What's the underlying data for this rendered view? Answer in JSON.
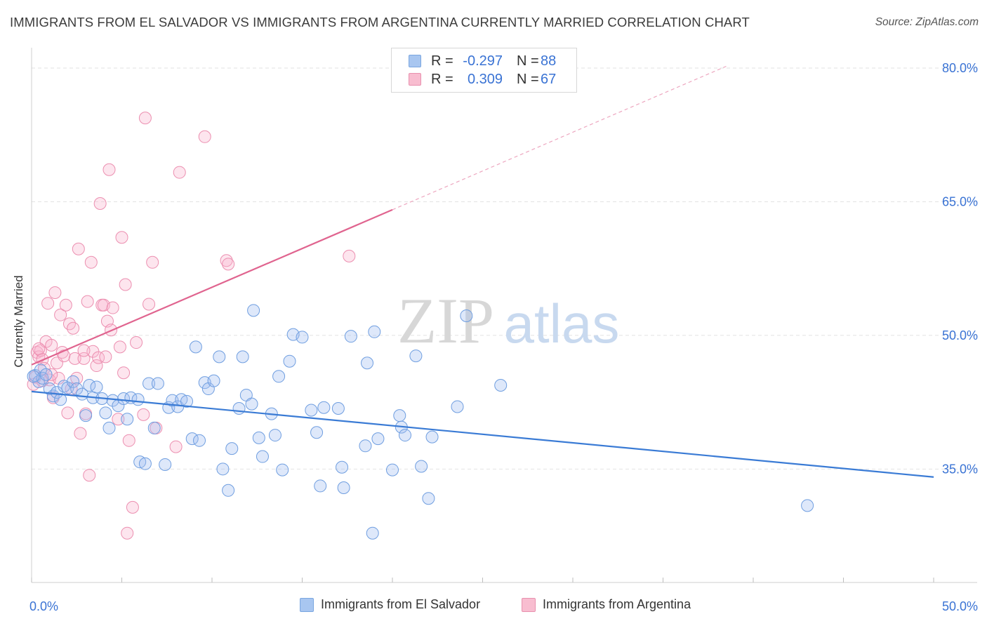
{
  "title": "IMMIGRANTS FROM EL SALVADOR VS IMMIGRANTS FROM ARGENTINA CURRENTLY MARRIED CORRELATION CHART",
  "source": "Source: ZipAtlas.com",
  "watermark": {
    "zip": "ZIP",
    "atlas": "atlas"
  },
  "legend": {
    "r_label": "R =",
    "n_label": "N =",
    "series": [
      {
        "r": "-0.297",
        "n": "88",
        "color": "#a8c6f0",
        "border": "#7aa6e0"
      },
      {
        "r": "0.309",
        "n": "67",
        "color": "#f8bdd0",
        "border": "#e890ae"
      }
    ]
  },
  "bottom_legend": [
    "Immigrants from El Salvador",
    "Immigrants from Argentina"
  ],
  "colors": {
    "blue_line": "#3a7bd5",
    "pink_line": "#e0648f",
    "blue_fill": "rgba(160,190,240,0.35)",
    "blue_stroke": "#6f9ee0",
    "pink_fill": "rgba(248,180,205,0.35)",
    "pink_stroke": "#ec8fb0",
    "tick_text": "#3a73d4",
    "grid": "#e2e2e2"
  },
  "chart_data": {
    "type": "scatter",
    "title": "IMMIGRANTS FROM EL SALVADOR VS IMMIGRANTS FROM ARGENTINA CURRENTLY MARRIED CORRELATION CHART",
    "xlabel": "",
    "ylabel": "Currently Married",
    "xlim": [
      0,
      50
    ],
    "ylim": [
      20,
      82
    ],
    "x_tick_labels": [
      "0.0%",
      "50.0%"
    ],
    "y_ticks": [
      35,
      50,
      65,
      80
    ],
    "y_tick_labels": [
      "35.0%",
      "50.0%",
      "65.0%",
      "80.0%"
    ],
    "grid": "horizontal dashed",
    "legend_position": "top-center",
    "series": [
      {
        "name": "Immigrants from El Salvador",
        "r": -0.297,
        "n": 88,
        "trend": {
          "x0": 0,
          "y0": 43.7,
          "x1": 50,
          "y1": 34.1
        },
        "points": [
          [
            0.2,
            45.5
          ],
          [
            0.4,
            44.8
          ],
          [
            0.5,
            46.1
          ],
          [
            0.6,
            45.2
          ],
          [
            0.8,
            45.6
          ],
          [
            1.0,
            44.0
          ],
          [
            1.2,
            43.2
          ],
          [
            1.4,
            43.6
          ],
          [
            1.6,
            42.8
          ],
          [
            1.8,
            44.3
          ],
          [
            2.0,
            44.1
          ],
          [
            2.3,
            44.8
          ],
          [
            2.5,
            44.0
          ],
          [
            2.8,
            43.4
          ],
          [
            3.0,
            41.0
          ],
          [
            3.2,
            44.4
          ],
          [
            3.4,
            43.0
          ],
          [
            3.6,
            44.2
          ],
          [
            3.9,
            42.9
          ],
          [
            4.1,
            41.3
          ],
          [
            4.3,
            39.6
          ],
          [
            4.5,
            42.7
          ],
          [
            4.8,
            42.1
          ],
          [
            5.1,
            42.9
          ],
          [
            5.3,
            40.6
          ],
          [
            5.5,
            43.0
          ],
          [
            5.9,
            42.8
          ],
          [
            6.0,
            35.8
          ],
          [
            6.3,
            35.6
          ],
          [
            6.5,
            44.6
          ],
          [
            6.8,
            39.6
          ],
          [
            7.0,
            44.6
          ],
          [
            7.4,
            35.5
          ],
          [
            7.6,
            41.9
          ],
          [
            7.8,
            42.7
          ],
          [
            8.1,
            42.0
          ],
          [
            8.3,
            42.8
          ],
          [
            8.6,
            42.6
          ],
          [
            8.9,
            38.4
          ],
          [
            9.1,
            48.7
          ],
          [
            9.3,
            38.2
          ],
          [
            9.6,
            44.7
          ],
          [
            9.8,
            44.0
          ],
          [
            10.1,
            44.9
          ],
          [
            10.4,
            47.6
          ],
          [
            10.6,
            35.0
          ],
          [
            10.9,
            32.6
          ],
          [
            11.1,
            37.3
          ],
          [
            11.5,
            41.8
          ],
          [
            11.7,
            47.6
          ],
          [
            11.9,
            43.3
          ],
          [
            12.2,
            42.3
          ],
          [
            12.3,
            52.8
          ],
          [
            12.6,
            38.5
          ],
          [
            12.8,
            36.4
          ],
          [
            13.3,
            41.2
          ],
          [
            13.5,
            38.8
          ],
          [
            13.7,
            45.4
          ],
          [
            13.9,
            34.9
          ],
          [
            14.3,
            47.1
          ],
          [
            14.5,
            50.1
          ],
          [
            15.0,
            49.8
          ],
          [
            15.5,
            41.6
          ],
          [
            15.8,
            39.1
          ],
          [
            16.0,
            33.1
          ],
          [
            16.2,
            41.9
          ],
          [
            17.0,
            41.8
          ],
          [
            17.2,
            35.2
          ],
          [
            17.3,
            32.9
          ],
          [
            17.7,
            49.9
          ],
          [
            18.5,
            37.6
          ],
          [
            18.6,
            46.9
          ],
          [
            18.9,
            27.8
          ],
          [
            19.0,
            50.4
          ],
          [
            19.2,
            38.4
          ],
          [
            20.0,
            34.9
          ],
          [
            20.4,
            41.0
          ],
          [
            20.5,
            39.7
          ],
          [
            20.7,
            38.8
          ],
          [
            21.3,
            47.7
          ],
          [
            21.6,
            35.3
          ],
          [
            22.0,
            31.7
          ],
          [
            22.2,
            38.6
          ],
          [
            23.6,
            42.0
          ],
          [
            24.1,
            52.2
          ],
          [
            26.0,
            44.4
          ],
          [
            43.0,
            30.9
          ],
          [
            0.1,
            45.4
          ]
        ]
      },
      {
        "name": "Immigrants from Argentina",
        "r": 0.309,
        "n": 67,
        "trend": {
          "x0": 0,
          "y0": 46.7,
          "x1": 20,
          "y1": 64.1,
          "x_dash_end": 38.5,
          "y_dash_end": 80.2
        },
        "points": [
          [
            0.1,
            44.5
          ],
          [
            0.2,
            45.3
          ],
          [
            0.3,
            48.1
          ],
          [
            0.4,
            47.6
          ],
          [
            0.5,
            48.3
          ],
          [
            0.6,
            47.3
          ],
          [
            0.7,
            46.3
          ],
          [
            0.8,
            49.3
          ],
          [
            0.9,
            53.6
          ],
          [
            1.0,
            45.0
          ],
          [
            1.1,
            48.9
          ],
          [
            1.2,
            43.0
          ],
          [
            1.3,
            54.8
          ],
          [
            1.4,
            46.9
          ],
          [
            1.5,
            45.2
          ],
          [
            1.6,
            52.3
          ],
          [
            1.7,
            48.1
          ],
          [
            1.8,
            47.7
          ],
          [
            1.9,
            53.4
          ],
          [
            2.0,
            41.3
          ],
          [
            2.1,
            51.3
          ],
          [
            2.2,
            44.0
          ],
          [
            2.3,
            50.8
          ],
          [
            2.4,
            47.4
          ],
          [
            2.5,
            45.2
          ],
          [
            2.6,
            59.7
          ],
          [
            2.7,
            39.0
          ],
          [
            2.9,
            47.4
          ],
          [
            3.0,
            41.2
          ],
          [
            3.1,
            53.8
          ],
          [
            3.2,
            34.3
          ],
          [
            3.3,
            58.2
          ],
          [
            3.4,
            48.2
          ],
          [
            3.6,
            46.6
          ],
          [
            3.7,
            47.5
          ],
          [
            3.8,
            64.8
          ],
          [
            3.9,
            53.4
          ],
          [
            4.0,
            53.4
          ],
          [
            4.1,
            47.6
          ],
          [
            4.2,
            51.6
          ],
          [
            4.3,
            68.6
          ],
          [
            4.4,
            50.6
          ],
          [
            4.5,
            53.1
          ],
          [
            4.8,
            40.6
          ],
          [
            4.9,
            48.7
          ],
          [
            5.0,
            61.0
          ],
          [
            5.1,
            45.8
          ],
          [
            5.2,
            55.7
          ],
          [
            5.4,
            38.2
          ],
          [
            5.6,
            30.7
          ],
          [
            5.3,
            27.8
          ],
          [
            5.8,
            49.2
          ],
          [
            6.2,
            41.1
          ],
          [
            6.3,
            74.4
          ],
          [
            6.5,
            53.5
          ],
          [
            6.7,
            58.2
          ],
          [
            6.9,
            39.6
          ],
          [
            8.0,
            37.5
          ],
          [
            8.2,
            68.3
          ],
          [
            9.6,
            72.3
          ],
          [
            10.8,
            58.4
          ],
          [
            10.9,
            58.0
          ],
          [
            17.6,
            58.9
          ],
          [
            0.4,
            48.5
          ],
          [
            0.6,
            44.9
          ],
          [
            1.1,
            45.6
          ],
          [
            2.9,
            48.3
          ]
        ]
      }
    ]
  }
}
